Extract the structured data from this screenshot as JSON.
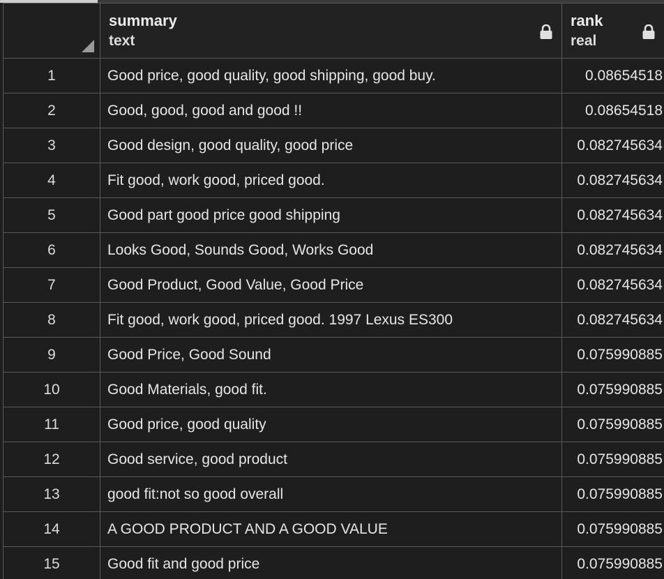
{
  "columns": {
    "summary": {
      "name": "summary",
      "type": "text"
    },
    "rank": {
      "name": "rank",
      "type": "real"
    }
  },
  "icons": {
    "lock": "lock-icon",
    "sort": "sort-corner-icon"
  },
  "rows": [
    {
      "idx": "1",
      "summary": "Good price, good quality, good shipping, good buy.",
      "rank": "0.08654518"
    },
    {
      "idx": "2",
      "summary": "Good, good, good and good !!",
      "rank": "0.08654518"
    },
    {
      "idx": "3",
      "summary": "Good design, good quality, good price",
      "rank": "0.082745634"
    },
    {
      "idx": "4",
      "summary": "Fit good, work good, priced good.",
      "rank": "0.082745634"
    },
    {
      "idx": "5",
      "summary": "Good part good price good shipping",
      "rank": "0.082745634"
    },
    {
      "idx": "6",
      "summary": "Looks Good, Sounds Good, Works Good",
      "rank": "0.082745634"
    },
    {
      "idx": "7",
      "summary": "Good Product, Good Value, Good Price",
      "rank": "0.082745634"
    },
    {
      "idx": "8",
      "summary": "Fit good, work good, priced good. 1997 Lexus ES300",
      "rank": "0.082745634"
    },
    {
      "idx": "9",
      "summary": "Good Price, Good Sound",
      "rank": "0.075990885"
    },
    {
      "idx": "10",
      "summary": "Good Materials, good fit.",
      "rank": "0.075990885"
    },
    {
      "idx": "11",
      "summary": "Good price, good quality",
      "rank": "0.075990885"
    },
    {
      "idx": "12",
      "summary": "Good service, good product",
      "rank": "0.075990885"
    },
    {
      "idx": "13",
      "summary": "good fit:not so good overall",
      "rank": "0.075990885"
    },
    {
      "idx": "14",
      "summary": "A GOOD PRODUCT AND A GOOD VALUE",
      "rank": "0.075990885"
    },
    {
      "idx": "15",
      "summary": "Good fit and good price",
      "rank": "0.075990885"
    }
  ]
}
